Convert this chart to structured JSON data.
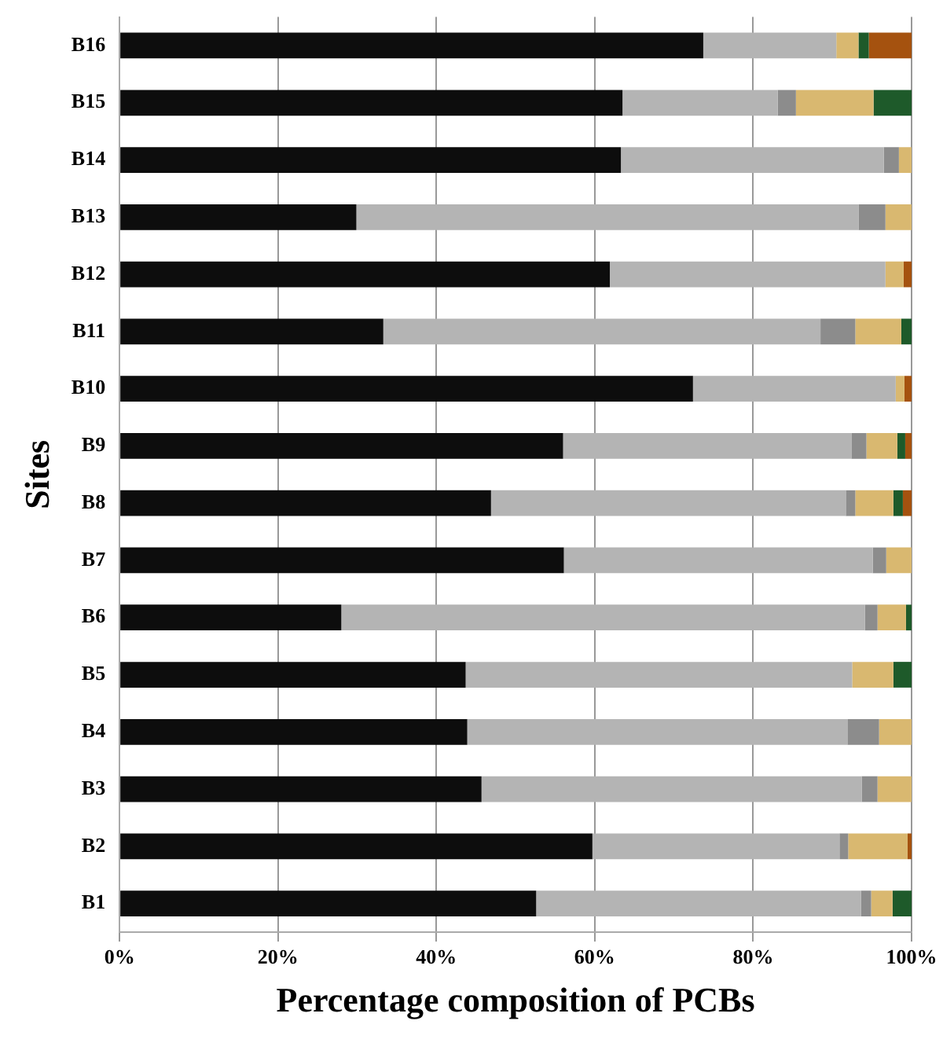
{
  "chart_data": {
    "type": "bar",
    "orientation": "horizontal",
    "stacked": true,
    "xlabel": "Percentage composition of PCBs",
    "ylabel": "Sites",
    "categories": [
      "B16",
      "B15",
      "B14",
      "B13",
      "B12",
      "B11",
      "B10",
      "B9",
      "B8",
      "B7",
      "B6",
      "B5",
      "B4",
      "B3",
      "B2",
      "B1"
    ],
    "series": [
      {
        "color": "#0d0d0d",
        "values": [
          73.7,
          63.5,
          63.3,
          29.9,
          61.9,
          33.3,
          72.4,
          56.0,
          46.9,
          56.1,
          28.0,
          43.7,
          43.9,
          45.7,
          59.7,
          52.6
        ]
      },
      {
        "color": "#b4b4b4",
        "values": [
          16.8,
          19.6,
          33.2,
          63.4,
          34.8,
          55.2,
          25.6,
          36.4,
          44.8,
          39.0,
          66.1,
          48.8,
          48.0,
          48.0,
          31.2,
          41.0
        ]
      },
      {
        "color": "#8c8c8c",
        "values": [
          0,
          2.3,
          1.9,
          3.4,
          0,
          4.4,
          0,
          1.9,
          1.2,
          1.7,
          1.6,
          0,
          4.0,
          2.0,
          1.1,
          1.3
        ]
      },
      {
        "color": "#d9b870",
        "values": [
          2.8,
          9.8,
          1.6,
          3.3,
          2.3,
          5.8,
          1.1,
          3.9,
          4.8,
          3.2,
          3.6,
          5.2,
          4.1,
          4.3,
          7.5,
          2.7
        ]
      },
      {
        "color": "#1e5a2a",
        "values": [
          1.3,
          4.8,
          0,
          0,
          0,
          1.3,
          0,
          1.0,
          1.2,
          0,
          0.7,
          2.3,
          0,
          0,
          0,
          2.4
        ]
      },
      {
        "color": "#a5520f",
        "values": [
          5.4,
          0,
          0,
          0,
          1.0,
          0,
          0.9,
          0.8,
          1.1,
          0,
          0,
          0,
          0,
          0,
          0.5,
          0
        ]
      }
    ],
    "xlim": [
      0,
      100
    ],
    "xticks": [
      {
        "value": 0,
        "label": "0%"
      },
      {
        "value": 20,
        "label": "20%"
      },
      {
        "value": 40,
        "label": "40%"
      },
      {
        "value": 60,
        "label": "60%"
      },
      {
        "value": 80,
        "label": "80%"
      },
      {
        "value": 100,
        "label": "100%"
      }
    ],
    "grid": "x",
    "legend": false
  }
}
